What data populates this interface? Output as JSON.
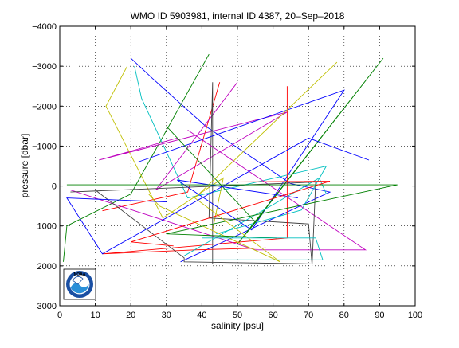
{
  "chart_data": {
    "type": "line",
    "title": "WMO ID 5903981, internal ID 4387, 20–Sep–2018",
    "xlabel": "salinity [psu]",
    "ylabel": "pressure [dbar]",
    "xlim": [
      0,
      100
    ],
    "ylim": [
      3000,
      -4000
    ],
    "y_reversed": true,
    "grid": true,
    "grid_style": "dotted",
    "x_ticks": [
      0,
      10,
      20,
      30,
      40,
      50,
      60,
      70,
      80,
      90,
      100
    ],
    "x_tick_labels": [
      "0",
      "10",
      "20",
      "30",
      "40",
      "50",
      "60",
      "70",
      "80",
      "90",
      "100"
    ],
    "y_ticks": [
      -4000,
      -3000,
      -2000,
      -1000,
      0,
      1000,
      2000,
      3000
    ],
    "y_tick_labels": [
      "−4000",
      "−3000",
      "−2000",
      "−1000",
      "0",
      "1000",
      "2000",
      "3000"
    ],
    "logo": "noaa-logo",
    "series": [
      {
        "color": "#0000ff",
        "x": [
          34,
          76,
          65,
          41,
          26,
          20
        ],
        "y": [
          1900,
          150,
          -60,
          -1500,
          -2700,
          -3200
        ]
      },
      {
        "color": "#008000",
        "x": [
          42,
          20,
          2,
          1
        ],
        "y": [
          -3300,
          200,
          1000,
          1900
        ]
      },
      {
        "color": "#ff0000",
        "x": [
          45,
          36,
          12
        ],
        "y": [
          -2600,
          150,
          620
        ]
      },
      {
        "color": "#00bfbf",
        "x": [
          21,
          23,
          36,
          75,
          68,
          44
        ],
        "y": [
          -3000,
          -2200,
          300,
          -500,
          600,
          1200
        ]
      },
      {
        "color": "#bf00bf",
        "x": [
          50,
          27,
          64,
          11,
          33
        ],
        "y": [
          -2600,
          100,
          -1850,
          -650,
          -1200
        ]
      },
      {
        "color": "#bfbf00",
        "x": [
          19,
          13,
          29,
          46,
          43
        ],
        "y": [
          -3000,
          -2000,
          800,
          -200,
          1100
        ]
      },
      {
        "color": "#404040",
        "x": [
          43,
          43,
          42,
          70,
          71
        ],
        "y": [
          1950,
          -2600,
          800,
          950,
          2000
        ]
      },
      {
        "color": "#0000ff",
        "x": [
          22,
          80,
          54,
          33,
          67
        ],
        "y": [
          -600,
          -2400,
          1100,
          -150,
          300
        ]
      },
      {
        "color": "#008000",
        "x": [
          30,
          55,
          91,
          50,
          57
        ],
        "y": [
          -1500,
          900,
          -3200,
          1450,
          700
        ]
      },
      {
        "color": "#ff0000",
        "x": [
          64,
          64,
          12,
          38,
          58
        ],
        "y": [
          -2500,
          1300,
          1700,
          1600,
          1550
        ]
      },
      {
        "color": "#00bfbf",
        "x": [
          34,
          75,
          73,
          35
        ],
        "y": [
          200,
          200,
          -200,
          1750
        ]
      },
      {
        "color": "#bf00bf",
        "x": [
          36,
          86,
          55,
          3
        ],
        "y": [
          -1400,
          1600,
          1600,
          100
        ]
      },
      {
        "color": "#bfbf00",
        "x": [
          78,
          38,
          62,
          28,
          25
        ],
        "y": [
          -3100,
          300,
          1900,
          500,
          200
        ]
      },
      {
        "color": "#404040",
        "x": [
          10,
          35,
          35,
          71,
          72,
          3
        ],
        "y": [
          100,
          1800,
          1900,
          1950,
          -100,
          150
        ]
      },
      {
        "color": "#0000ff",
        "x": [
          87,
          70,
          12,
          2,
          30
        ],
        "y": [
          -650,
          -1200,
          1700,
          300,
          400
        ]
      },
      {
        "color": "#008000",
        "x": [
          2,
          95,
          30,
          61
        ],
        "y": [
          -30,
          -30,
          1200,
          1300
        ]
      },
      {
        "color": "#ff0000",
        "x": [
          46,
          76,
          20,
          32
        ],
        "y": [
          -100,
          -120,
          1400,
          1500
        ]
      },
      {
        "color": "#00bfbf",
        "x": [
          36,
          74,
          72,
          40
        ],
        "y": [
          1850,
          1850,
          1300,
          1300
        ]
      }
    ]
  }
}
